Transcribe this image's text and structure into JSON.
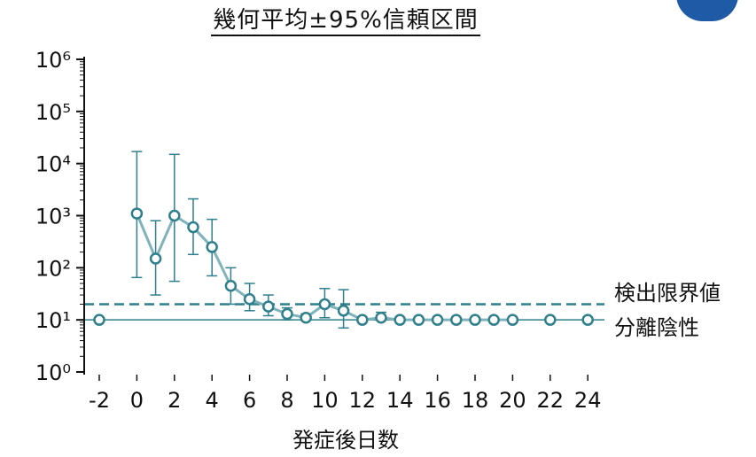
{
  "chart_data": {
    "type": "line",
    "title": "幾何平均±95%信頼区間",
    "xlabel": "発症後日数",
    "ylabel": "",
    "y_scale": "log",
    "ylim": [
      1,
      1000000
    ],
    "y_tick_labels": [
      "10⁰",
      "10¹",
      "10²",
      "10³",
      "10⁴",
      "10⁵",
      "10⁶"
    ],
    "x_ticks": [
      -2,
      0,
      2,
      4,
      6,
      8,
      10,
      12,
      14,
      16,
      18,
      20,
      22,
      24
    ],
    "series": [
      {
        "x": [
          -2,
          0,
          1,
          2,
          3,
          4,
          5,
          6,
          7,
          8,
          9,
          10,
          11,
          12,
          13,
          14,
          15,
          16,
          17,
          18,
          19,
          20,
          22,
          24
        ],
        "y": [
          10,
          1100,
          150,
          1000,
          600,
          250,
          45,
          25,
          18,
          13,
          11,
          20,
          15,
          10,
          11,
          10,
          10,
          10,
          10,
          10,
          10,
          10,
          10,
          10
        ],
        "ci_low": [
          null,
          65,
          30,
          55,
          180,
          70,
          20,
          15,
          12,
          10,
          10,
          11,
          7,
          null,
          10,
          null,
          null,
          null,
          null,
          null,
          null,
          null,
          null,
          null
        ],
        "ci_high": [
          null,
          17000,
          800,
          15000,
          2100,
          850,
          100,
          50,
          30,
          17,
          13,
          40,
          38,
          null,
          14,
          null,
          null,
          null,
          null,
          null,
          null,
          null,
          null,
          null
        ]
      }
    ],
    "reference_lines": [
      {
        "label": "検出限界値",
        "y": 20,
        "style": "dashed"
      },
      {
        "label": "分離陰性",
        "y": 10,
        "style": "solid"
      }
    ],
    "colors": {
      "series": "#2f7f8c",
      "marker_fill": "#ffffff",
      "axis": "#111111",
      "logo": "#1e5aa6"
    }
  }
}
